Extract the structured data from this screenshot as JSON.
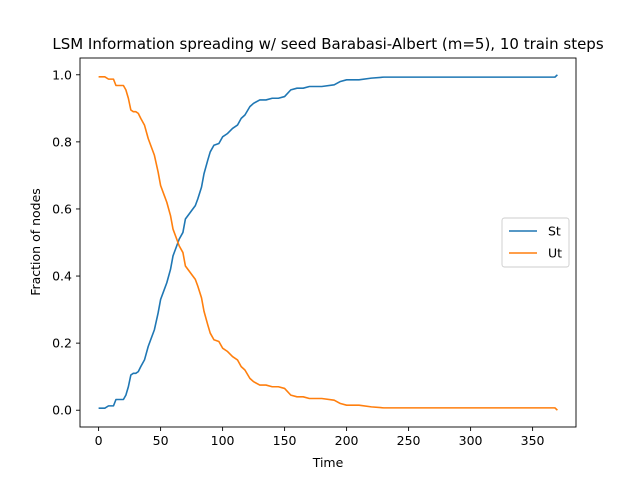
{
  "chart_data": {
    "type": "line",
    "title": "LSM Information spreading w/ seed Barabasi-Albert (m=5), 10 train steps",
    "xlabel": "Time",
    "ylabel": "Fraction of nodes",
    "xlim": [
      -15,
      385
    ],
    "ylim": [
      -0.05,
      1.05
    ],
    "xticks": [
      0,
      50,
      100,
      150,
      200,
      250,
      300,
      350
    ],
    "yticks": [
      0.0,
      0.2,
      0.4,
      0.6,
      0.8,
      1.0
    ],
    "ytick_labels": [
      "0.0",
      "0.2",
      "0.4",
      "0.6",
      "0.8",
      "1.0"
    ],
    "grid": false,
    "legend_position": "center-right",
    "series": [
      {
        "name": "St",
        "color": "#1f77b4",
        "x": [
          0,
          5,
          8,
          12,
          14,
          20,
          22,
          24,
          26,
          28,
          30,
          32,
          34,
          37,
          40,
          42,
          45,
          48,
          50,
          53,
          55,
          58,
          60,
          63,
          65,
          68,
          70,
          73,
          75,
          78,
          80,
          83,
          85,
          88,
          90,
          93,
          97,
          100,
          104,
          108,
          112,
          115,
          118,
          122,
          125,
          130,
          135,
          140,
          145,
          150,
          155,
          160,
          165,
          170,
          180,
          190,
          195,
          200,
          210,
          220,
          230,
          240,
          250,
          300,
          350,
          368,
          370
        ],
        "y": [
          0.006,
          0.006,
          0.013,
          0.013,
          0.032,
          0.032,
          0.045,
          0.07,
          0.105,
          0.11,
          0.11,
          0.115,
          0.13,
          0.15,
          0.19,
          0.21,
          0.24,
          0.29,
          0.33,
          0.36,
          0.38,
          0.42,
          0.46,
          0.49,
          0.51,
          0.53,
          0.57,
          0.585,
          0.595,
          0.61,
          0.63,
          0.665,
          0.705,
          0.745,
          0.77,
          0.79,
          0.795,
          0.815,
          0.825,
          0.84,
          0.85,
          0.87,
          0.88,
          0.905,
          0.915,
          0.925,
          0.925,
          0.93,
          0.93,
          0.935,
          0.955,
          0.96,
          0.96,
          0.965,
          0.965,
          0.97,
          0.98,
          0.985,
          0.985,
          0.99,
          0.993,
          0.993,
          0.993,
          0.993,
          0.993,
          0.993,
          1.0
        ]
      },
      {
        "name": "Ut",
        "color": "#ff7f0e",
        "x": [
          0,
          5,
          8,
          12,
          14,
          20,
          22,
          24,
          26,
          28,
          30,
          32,
          34,
          37,
          40,
          42,
          45,
          48,
          50,
          53,
          55,
          58,
          60,
          63,
          65,
          68,
          70,
          73,
          75,
          78,
          80,
          83,
          85,
          88,
          90,
          93,
          97,
          100,
          104,
          108,
          112,
          115,
          118,
          122,
          125,
          130,
          135,
          140,
          145,
          150,
          155,
          160,
          165,
          170,
          180,
          190,
          195,
          200,
          210,
          220,
          230,
          240,
          250,
          300,
          350,
          368,
          370
        ],
        "y": [
          0.994,
          0.994,
          0.987,
          0.987,
          0.968,
          0.968,
          0.955,
          0.93,
          0.895,
          0.89,
          0.89,
          0.885,
          0.87,
          0.85,
          0.81,
          0.79,
          0.76,
          0.71,
          0.67,
          0.64,
          0.62,
          0.58,
          0.54,
          0.51,
          0.49,
          0.47,
          0.43,
          0.415,
          0.405,
          0.39,
          0.37,
          0.335,
          0.295,
          0.255,
          0.23,
          0.21,
          0.205,
          0.185,
          0.175,
          0.16,
          0.15,
          0.13,
          0.12,
          0.095,
          0.085,
          0.075,
          0.075,
          0.07,
          0.07,
          0.065,
          0.045,
          0.04,
          0.04,
          0.035,
          0.035,
          0.03,
          0.02,
          0.015,
          0.015,
          0.01,
          0.007,
          0.007,
          0.007,
          0.007,
          0.007,
          0.007,
          0.0
        ]
      }
    ]
  }
}
